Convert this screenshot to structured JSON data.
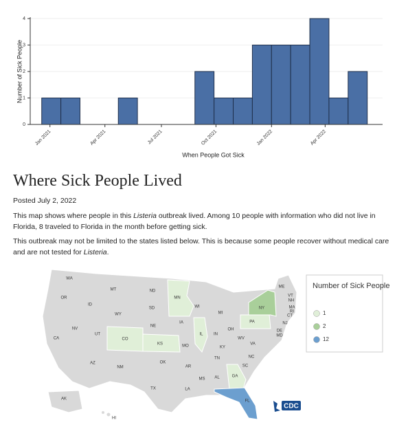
{
  "chart_data": {
    "type": "histogram",
    "xlabel": "When People Got Sick",
    "ylabel": "Number of Sick People",
    "color": "#4a6fa5",
    "bins": [
      0,
      1,
      2,
      3,
      4,
      5,
      6,
      7,
      8,
      9,
      10,
      11,
      12,
      13,
      14,
      15,
      16,
      17
    ],
    "values": [
      1,
      1,
      0,
      0,
      1,
      0,
      0,
      0,
      2,
      1,
      1,
      3,
      3,
      3,
      4,
      1,
      2
    ],
    "xlim": [
      -0.6,
      17.8
    ],
    "xticks": [
      {
        "value": 0.43,
        "label": "Jan 2021"
      },
      {
        "value": 3.3,
        "label": "Apr 2021"
      },
      {
        "value": 6.25,
        "label": "Jul 2021"
      },
      {
        "value": 9.1,
        "label": "Oct 2021"
      },
      {
        "value": 12.0,
        "label": "Jan 2022"
      },
      {
        "value": 14.8,
        "label": "Apr 2022"
      }
    ],
    "ylim": [
      0,
      4
    ],
    "yticks": [
      0,
      1,
      2,
      3,
      4
    ],
    "grid": true
  },
  "article": {
    "title": "Where Sick People Lived",
    "posted": "Posted July 2, 2022",
    "paragraphs": [
      [
        "This map shows where people in this ",
        "Listeria",
        " outbreak lived. Among 10 people with information who did not live in Florida, 8 traveled to Florida in the month before getting sick."
      ],
      [
        "This outbreak may not be limited to the states listed below. This is because some people recover without medical care and are not tested for ",
        "Listeria",
        "."
      ]
    ]
  },
  "map": {
    "legend": {
      "title": "Number of Sick People",
      "items": [
        {
          "label": "1",
          "color": "#e0efd8"
        },
        {
          "label": "2",
          "color": "#a9cf9a"
        },
        {
          "label": "12",
          "color": "#6c9fcf"
        }
      ]
    },
    "states": [
      "WA",
      "OR",
      "ID",
      "MT",
      "ND",
      "MN",
      "WI",
      "MI",
      "NY",
      "VT",
      "NH",
      "ME",
      "MA",
      "RI",
      "CT",
      "NJ",
      "DE",
      "MD",
      "PA",
      "OH",
      "IN",
      "IL",
      "IA",
      "SD",
      "NE",
      "WY",
      "NV",
      "UT",
      "CO",
      "KS",
      "MO",
      "KY",
      "WV",
      "VA",
      "NC",
      "TN",
      "SC",
      "GA",
      "AL",
      "MS",
      "AR",
      "OK",
      "TX",
      "LA",
      "NM",
      "AZ",
      "CA",
      "FL",
      "AK",
      "HI"
    ],
    "logo": "CDC"
  }
}
